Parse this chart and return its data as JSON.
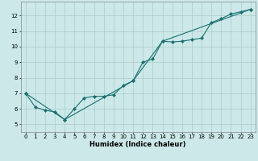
{
  "title": "",
  "xlabel": "Humidex (Indice chaleur)",
  "ylabel": "",
  "background_color": "#cce8e8",
  "grid_color": "#aacccc",
  "line_color": "#1a7070",
  "marker_color": "#1a7070",
  "xlim": [
    -0.5,
    23.5
  ],
  "ylim": [
    4.5,
    12.9
  ],
  "yticks": [
    5,
    6,
    7,
    8,
    9,
    10,
    11,
    12
  ],
  "xticks": [
    0,
    1,
    2,
    3,
    4,
    5,
    6,
    7,
    8,
    9,
    10,
    11,
    12,
    13,
    14,
    15,
    16,
    17,
    18,
    19,
    20,
    21,
    22,
    23
  ],
  "series1_x": [
    0,
    1,
    2,
    3,
    4,
    5,
    6,
    7,
    8,
    9,
    10,
    11,
    12,
    13,
    14,
    15,
    16,
    17,
    18,
    19,
    20,
    21,
    22,
    23
  ],
  "series1_y": [
    7.0,
    6.1,
    5.9,
    5.8,
    5.3,
    6.0,
    6.7,
    6.8,
    6.8,
    6.9,
    7.5,
    7.8,
    9.0,
    9.2,
    10.35,
    10.3,
    10.35,
    10.45,
    10.55,
    11.55,
    11.8,
    12.1,
    12.25,
    12.4
  ],
  "series2_x": [
    0,
    4,
    11,
    14,
    23
  ],
  "series2_y": [
    7.0,
    5.3,
    7.8,
    10.35,
    12.4
  ]
}
